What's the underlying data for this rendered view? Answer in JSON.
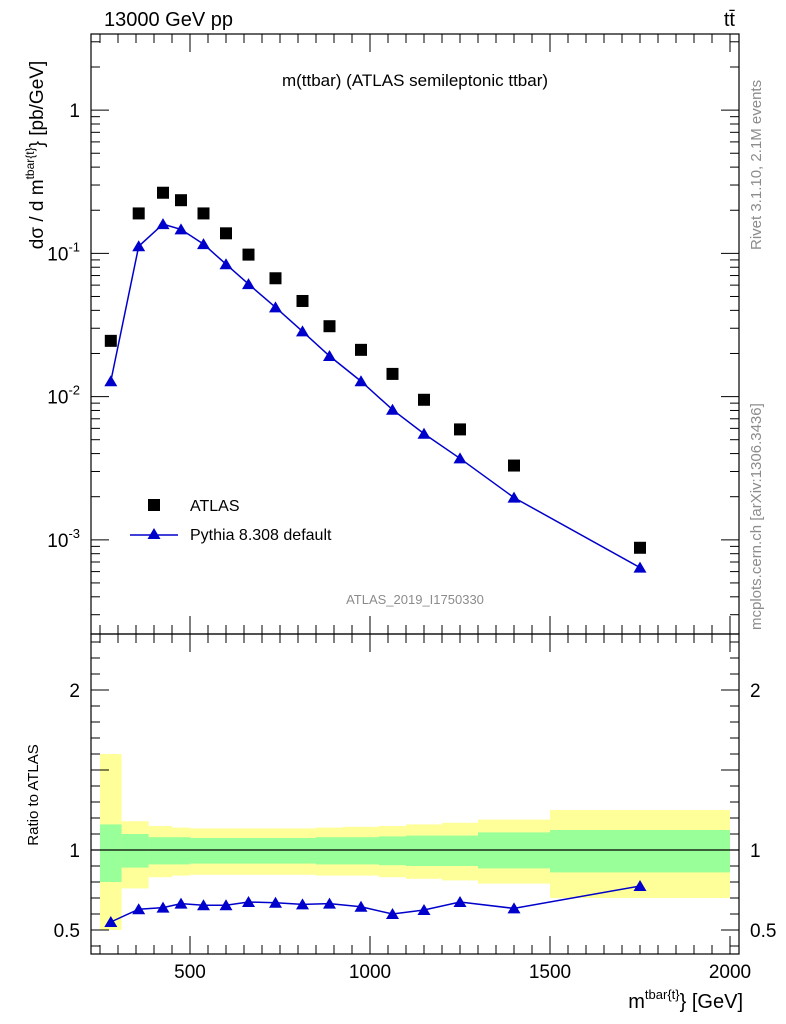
{
  "header": {
    "left": "13000 GeV pp",
    "right": "tt̄"
  },
  "side_labels": {
    "upper": "Rivet 3.1.10,  2.1M events",
    "lower": "mcplots.cern.ch [arXiv:1306.3436]"
  },
  "colors": {
    "data": "#000000",
    "mc": "#0000cc",
    "band_inner": "#99ff99",
    "band_outer": "#ffff99",
    "background": "#ffffff"
  },
  "chart_data": [
    {
      "type": "scatter",
      "title": "m(ttbar) (ATLAS semileptonic ttbar)",
      "ylabel": "dσ / d m^{tbar{t}} [pb/GeV]",
      "xlabel": "",
      "watermark": "ATLAS_2019_I1750330",
      "xlim": [
        225,
        2025
      ],
      "ylim": [
        0.00022,
        3.4
      ],
      "yscale": "log",
      "ytick_labels": [
        "10^{-3}",
        "10^{-2}",
        "10^{-1}",
        "1"
      ],
      "legend_position": "bottom-left",
      "series": [
        {
          "name": "ATLAS",
          "style": "markers",
          "marker": "square",
          "x": [
            280,
            357.5,
            425,
            475,
            537.5,
            600,
            662.5,
            737.5,
            812.5,
            887.5,
            975,
            1062.5,
            1150,
            1250,
            1400,
            1750
          ],
          "y": [
            0.0245,
            0.19,
            0.265,
            0.235,
            0.19,
            0.138,
            0.098,
            0.067,
            0.0465,
            0.031,
            0.0212,
            0.0144,
            0.0095,
            0.0059,
            0.0033,
            0.00088
          ]
        },
        {
          "name": "Pythia 8.308 default",
          "style": "line+markers",
          "marker": "triangle",
          "x": [
            280,
            357.5,
            425,
            475,
            537.5,
            600,
            662.5,
            737.5,
            812.5,
            887.5,
            975,
            1062.5,
            1150,
            1250,
            1400,
            1750
          ],
          "y": [
            0.0128,
            0.112,
            0.16,
            0.147,
            0.116,
            0.084,
            0.061,
            0.042,
            0.0285,
            0.0192,
            0.0128,
            0.0081,
            0.0055,
            0.0037,
            0.00197,
            0.00064
          ]
        }
      ]
    },
    {
      "type": "scatter",
      "ylabel": "Ratio to ATLAS",
      "xlabel": "m^{tbar{t}} [GeV]",
      "xlim": [
        225,
        2025
      ],
      "ylim": [
        0.35,
        2.35
      ],
      "xticks": [
        500,
        1000,
        1500,
        2000
      ],
      "yticks": [
        0.5,
        1,
        2
      ],
      "reference_line": 1,
      "bands": {
        "bins": [
          [
            250,
            310
          ],
          [
            310,
            385
          ],
          [
            385,
            450
          ],
          [
            450,
            500
          ],
          [
            500,
            575
          ],
          [
            575,
            625
          ],
          [
            625,
            700
          ],
          [
            700,
            775
          ],
          [
            775,
            850
          ],
          [
            850,
            925
          ],
          [
            925,
            1025
          ],
          [
            1025,
            1100
          ],
          [
            1100,
            1200
          ],
          [
            1200,
            1300
          ],
          [
            1300,
            1500
          ],
          [
            1500,
            2000
          ]
        ],
        "inner_low": [
          0.8,
          0.89,
          0.91,
          0.91,
          0.915,
          0.915,
          0.915,
          0.915,
          0.915,
          0.91,
          0.91,
          0.905,
          0.9,
          0.9,
          0.885,
          0.86
        ],
        "inner_high": [
          1.16,
          1.1,
          1.08,
          1.08,
          1.075,
          1.075,
          1.075,
          1.075,
          1.075,
          1.08,
          1.08,
          1.085,
          1.09,
          1.09,
          1.11,
          1.125
        ],
        "outer_low": [
          0.5,
          0.76,
          0.83,
          0.84,
          0.845,
          0.845,
          0.845,
          0.845,
          0.845,
          0.84,
          0.84,
          0.83,
          0.82,
          0.81,
          0.79,
          0.7
        ],
        "outer_high": [
          1.6,
          1.18,
          1.15,
          1.14,
          1.135,
          1.135,
          1.135,
          1.135,
          1.135,
          1.14,
          1.145,
          1.15,
          1.16,
          1.17,
          1.19,
          1.25
        ]
      },
      "series": [
        {
          "name": "Pythia 8.308 default",
          "style": "line+markers",
          "marker": "triangle",
          "x": [
            280,
            357.5,
            425,
            475,
            537.5,
            600,
            662.5,
            737.5,
            812.5,
            887.5,
            975,
            1062.5,
            1150,
            1250,
            1400,
            1750
          ],
          "y": [
            0.55,
            0.63,
            0.64,
            0.665,
            0.655,
            0.655,
            0.675,
            0.67,
            0.66,
            0.665,
            0.645,
            0.6,
            0.625,
            0.675,
            0.635,
            0.775
          ]
        }
      ]
    }
  ]
}
